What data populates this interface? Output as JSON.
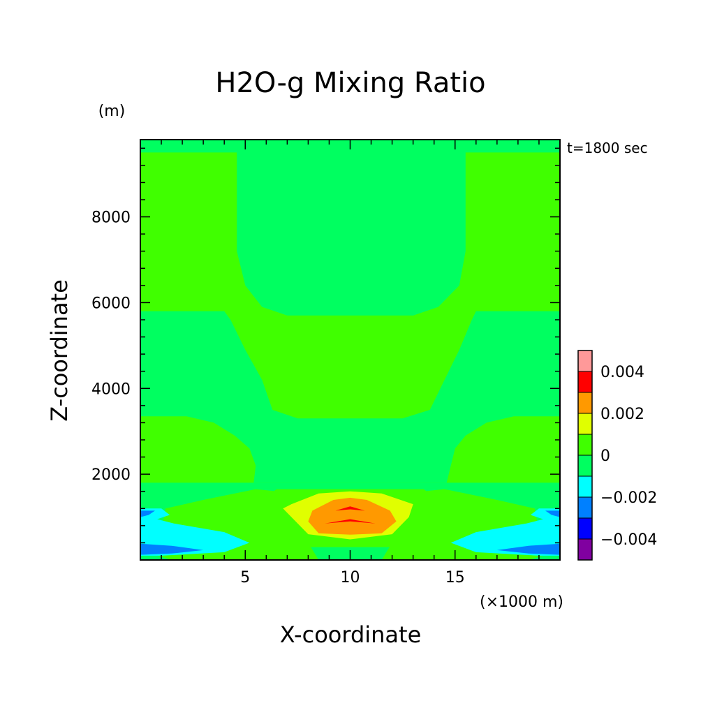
{
  "chart_data": {
    "type": "heatmap",
    "title": "H2O-g Mixing Ratio",
    "xlabel": "X-coordinate",
    "ylabel": "Z-coordinate",
    "x_unit": "(×1000 m)",
    "y_unit": "(m)",
    "time_label": "t=1800 sec",
    "xlim": [
      0,
      20
    ],
    "ylim": [
      0,
      9800
    ],
    "x_major_ticks": [
      5,
      10,
      15
    ],
    "x_minor_step": 1,
    "y_major_ticks": [
      2000,
      4000,
      6000,
      8000
    ],
    "y_minor_step": 400,
    "grid": false,
    "colorbar": {
      "levels": [
        -0.005,
        -0.004,
        -0.003,
        -0.002,
        -0.001,
        0,
        0.001,
        0.002,
        0.003,
        0.004,
        0.005
      ],
      "colors": [
        "#8000a0",
        "#0000ff",
        "#0080ff",
        "#00ffff",
        "#00ff60",
        "#40ff00",
        "#e0ff00",
        "#ff9900",
        "#ff0000",
        "#ff9999"
      ],
      "labels": [
        {
          "value": -0.004,
          "text": "−0.004"
        },
        {
          "value": -0.002,
          "text": "−0.002"
        },
        {
          "value": 0,
          "text": "0"
        },
        {
          "value": 0.002,
          "text": "0.002"
        },
        {
          "value": 0.004,
          "text": "0.004"
        }
      ]
    },
    "regions": [
      {
        "level": "0 to 0.001",
        "color": "#40ff00",
        "points": [
          [
            0,
            0
          ],
          [
            20,
            0
          ],
          [
            20,
            9800
          ],
          [
            0,
            9800
          ]
        ]
      },
      {
        "level": "-0.001 to 0",
        "color": "#00ff60",
        "points": [
          [
            0,
            9800
          ],
          [
            20,
            9800
          ],
          [
            20,
            9500
          ],
          [
            15.5,
            9500
          ],
          [
            15.5,
            7200
          ],
          [
            15.2,
            6400
          ],
          [
            14.2,
            5900
          ],
          [
            13,
            5700
          ],
          [
            10,
            5700
          ],
          [
            7,
            5700
          ],
          [
            5.8,
            5900
          ],
          [
            5,
            6400
          ],
          [
            4.6,
            7200
          ],
          [
            4.6,
            9500
          ],
          [
            0,
            9500
          ]
        ]
      },
      {
        "level": "-0.001 to 0",
        "color": "#00ff60",
        "points": [
          [
            0,
            5800
          ],
          [
            4,
            5800
          ],
          [
            4.3,
            5600
          ],
          [
            5,
            4900
          ],
          [
            5.8,
            4200
          ],
          [
            6.3,
            3500
          ],
          [
            7.5,
            3300
          ],
          [
            10,
            3300
          ],
          [
            12.5,
            3300
          ],
          [
            13.8,
            3500
          ],
          [
            14.5,
            4200
          ],
          [
            15.2,
            4900
          ],
          [
            15.8,
            5600
          ],
          [
            16,
            5800
          ],
          [
            20,
            5800
          ],
          [
            20,
            3350
          ],
          [
            17.8,
            3350
          ],
          [
            16.5,
            3200
          ],
          [
            15.5,
            2900
          ],
          [
            15,
            2600
          ],
          [
            14.8,
            2200
          ],
          [
            14.6,
            1800
          ],
          [
            14,
            1800
          ],
          [
            6,
            1800
          ],
          [
            5.4,
            1800
          ],
          [
            5.5,
            2200
          ],
          [
            5.2,
            2600
          ],
          [
            4.5,
            2900
          ],
          [
            3.5,
            3200
          ],
          [
            2.2,
            3350
          ],
          [
            0,
            3350
          ]
        ]
      },
      {
        "level": "-0.001 to 0",
        "color": "#00ff60",
        "points": [
          [
            0,
            1800
          ],
          [
            20,
            1800
          ],
          [
            20,
            0
          ],
          [
            0,
            0
          ]
        ]
      },
      {
        "level": "0 to 0.001",
        "color": "#40ff00",
        "points": [
          [
            1.5,
            0
          ],
          [
            0.8,
            100
          ],
          [
            1.2,
            1200
          ],
          [
            3,
            1400
          ],
          [
            5.5,
            1650
          ],
          [
            6.5,
            1600
          ],
          [
            7,
            1400
          ],
          [
            6,
            1200
          ],
          [
            7,
            900
          ],
          [
            8,
            400
          ],
          [
            8.5,
            0
          ]
        ]
      },
      {
        "level": "0 to 0.001",
        "color": "#40ff00",
        "points": [
          [
            18.5,
            0
          ],
          [
            19.2,
            100
          ],
          [
            18.8,
            1200
          ],
          [
            17,
            1400
          ],
          [
            14.5,
            1650
          ],
          [
            13.5,
            1600
          ],
          [
            13,
            1400
          ],
          [
            14,
            1200
          ],
          [
            13,
            900
          ],
          [
            12,
            400
          ],
          [
            11.5,
            0
          ]
        ]
      },
      {
        "level": "0 to 0.001",
        "color": "#40ff00",
        "points": [
          [
            6.5,
            1650
          ],
          [
            13.5,
            1650
          ],
          [
            14.5,
            1300
          ],
          [
            14,
            700
          ],
          [
            12,
            300
          ],
          [
            8,
            300
          ],
          [
            6,
            700
          ],
          [
            5.5,
            1300
          ]
        ]
      },
      {
        "level": "0.001 to 0.002",
        "color": "#e0ff00",
        "points": [
          [
            7.2,
            1300
          ],
          [
            8.5,
            1550
          ],
          [
            10,
            1600
          ],
          [
            11.5,
            1550
          ],
          [
            13,
            1300
          ],
          [
            12.8,
            1000
          ],
          [
            12,
            600
          ],
          [
            10,
            480
          ],
          [
            8,
            600
          ],
          [
            7.2,
            1000
          ],
          [
            6.8,
            1200
          ]
        ]
      },
      {
        "level": "0.002 to 0.003",
        "color": "#ff9900",
        "points": [
          [
            8.2,
            1150
          ],
          [
            9.2,
            1400
          ],
          [
            10,
            1450
          ],
          [
            10.8,
            1400
          ],
          [
            11.9,
            1150
          ],
          [
            12.2,
            900
          ],
          [
            11.5,
            620
          ],
          [
            10,
            590
          ],
          [
            8.5,
            620
          ],
          [
            8,
            900
          ]
        ]
      },
      {
        "level": "0.003 to 0.004",
        "color": "#ff0000",
        "points": [
          [
            9.3,
            1150
          ],
          [
            10,
            1250
          ],
          [
            10.7,
            1150
          ],
          [
            10,
            1180
          ]
        ]
      },
      {
        "level": "0.003 to 0.004",
        "color": "#ff0000",
        "points": [
          [
            8.8,
            850
          ],
          [
            10,
            950
          ],
          [
            11.2,
            850
          ],
          [
            10,
            900
          ]
        ]
      },
      {
        "level": "-0.002 to -0.001",
        "color": "#00ffff",
        "points": [
          [
            0,
            1200
          ],
          [
            1,
            1200
          ],
          [
            1.4,
            1050
          ],
          [
            0.8,
            950
          ],
          [
            1.6,
            850
          ],
          [
            4,
            650
          ],
          [
            5.2,
            400
          ],
          [
            4,
            180
          ],
          [
            1,
            100
          ],
          [
            0,
            100
          ]
        ]
      },
      {
        "level": "-0.002 to -0.001",
        "color": "#00ffff",
        "points": [
          [
            20,
            1200
          ],
          [
            19,
            1200
          ],
          [
            18.6,
            1050
          ],
          [
            19.2,
            950
          ],
          [
            18.4,
            850
          ],
          [
            16,
            650
          ],
          [
            14.8,
            400
          ],
          [
            16,
            180
          ],
          [
            19,
            100
          ],
          [
            20,
            100
          ]
        ]
      },
      {
        "level": "-0.003 to -0.002",
        "color": "#0080ff",
        "points": [
          [
            0,
            1150
          ],
          [
            0.7,
            1150
          ],
          [
            0.4,
            1050
          ],
          [
            0,
            1000
          ]
        ]
      },
      {
        "level": "-0.003 to -0.002",
        "color": "#0080ff",
        "points": [
          [
            0,
            380
          ],
          [
            1.5,
            330
          ],
          [
            3,
            230
          ],
          [
            1.5,
            150
          ],
          [
            0,
            120
          ]
        ]
      },
      {
        "level": "-0.003 to -0.002",
        "color": "#0080ff",
        "points": [
          [
            20,
            1150
          ],
          [
            19.3,
            1150
          ],
          [
            19.6,
            1050
          ],
          [
            20,
            1000
          ]
        ]
      },
      {
        "level": "-0.003 to -0.002",
        "color": "#0080ff",
        "points": [
          [
            20,
            380
          ],
          [
            18.5,
            330
          ],
          [
            17,
            230
          ],
          [
            18.5,
            150
          ],
          [
            20,
            120
          ]
        ]
      }
    ]
  }
}
